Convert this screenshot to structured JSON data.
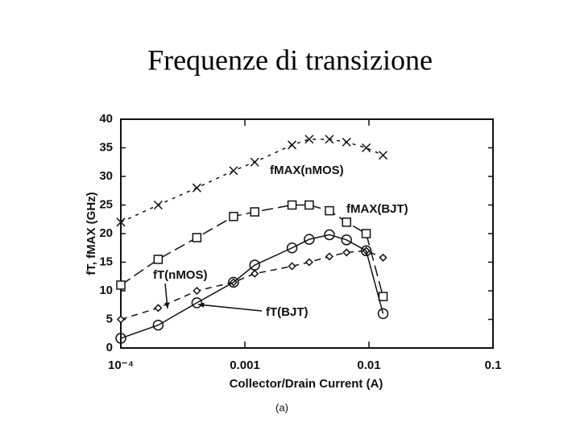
{
  "chart_data": {
    "type": "line",
    "title": "Frequenze di transizione",
    "x_label": "Collector/Drain Current (A)",
    "y_label": "fT, fMAX (GHz)",
    "caption": "(a)",
    "xscale": "log",
    "xlim": [
      0.0001,
      0.1
    ],
    "xticks": [
      {
        "value": 0.0001,
        "label": "10⁻⁴"
      },
      0.001,
      0.01,
      0.1
    ],
    "ylim": [
      0,
      40
    ],
    "yticks": [
      0,
      5,
      10,
      15,
      20,
      25,
      30,
      35,
      40
    ],
    "grid": false,
    "x": [
      0.0001,
      0.0002,
      0.00041,
      0.00081,
      0.0012,
      0.0024,
      0.0033,
      0.0048,
      0.0066,
      0.0095,
      0.013
    ],
    "series": [
      {
        "name": "fMAX(nMOS)",
        "color": "#111111",
        "marker": "x",
        "dash": "4 6",
        "values": [
          22,
          25,
          28,
          31,
          32.5,
          35.5,
          36.5,
          36.5,
          36,
          35,
          33.7
        ]
      },
      {
        "name": "fMAX(BJT)",
        "color": "#111111",
        "marker": "square",
        "dash": "14 6",
        "values": [
          11,
          15.5,
          19.3,
          23,
          23.8,
          25,
          25,
          24,
          22,
          20,
          9
        ]
      },
      {
        "name": "fT(nMOS)",
        "color": "#111111",
        "marker": "diamond",
        "dash": "8 6",
        "values": [
          5,
          7,
          10,
          11.5,
          13,
          14.3,
          15,
          16,
          16.7,
          17,
          15.8
        ]
      },
      {
        "name": "fT(BJT)",
        "color": "#111111",
        "marker": "circle",
        "dash": "none",
        "values": [
          1.7,
          4,
          7.9,
          11.5,
          14.5,
          17.5,
          19,
          19.8,
          18.9,
          17,
          6
        ]
      }
    ]
  }
}
